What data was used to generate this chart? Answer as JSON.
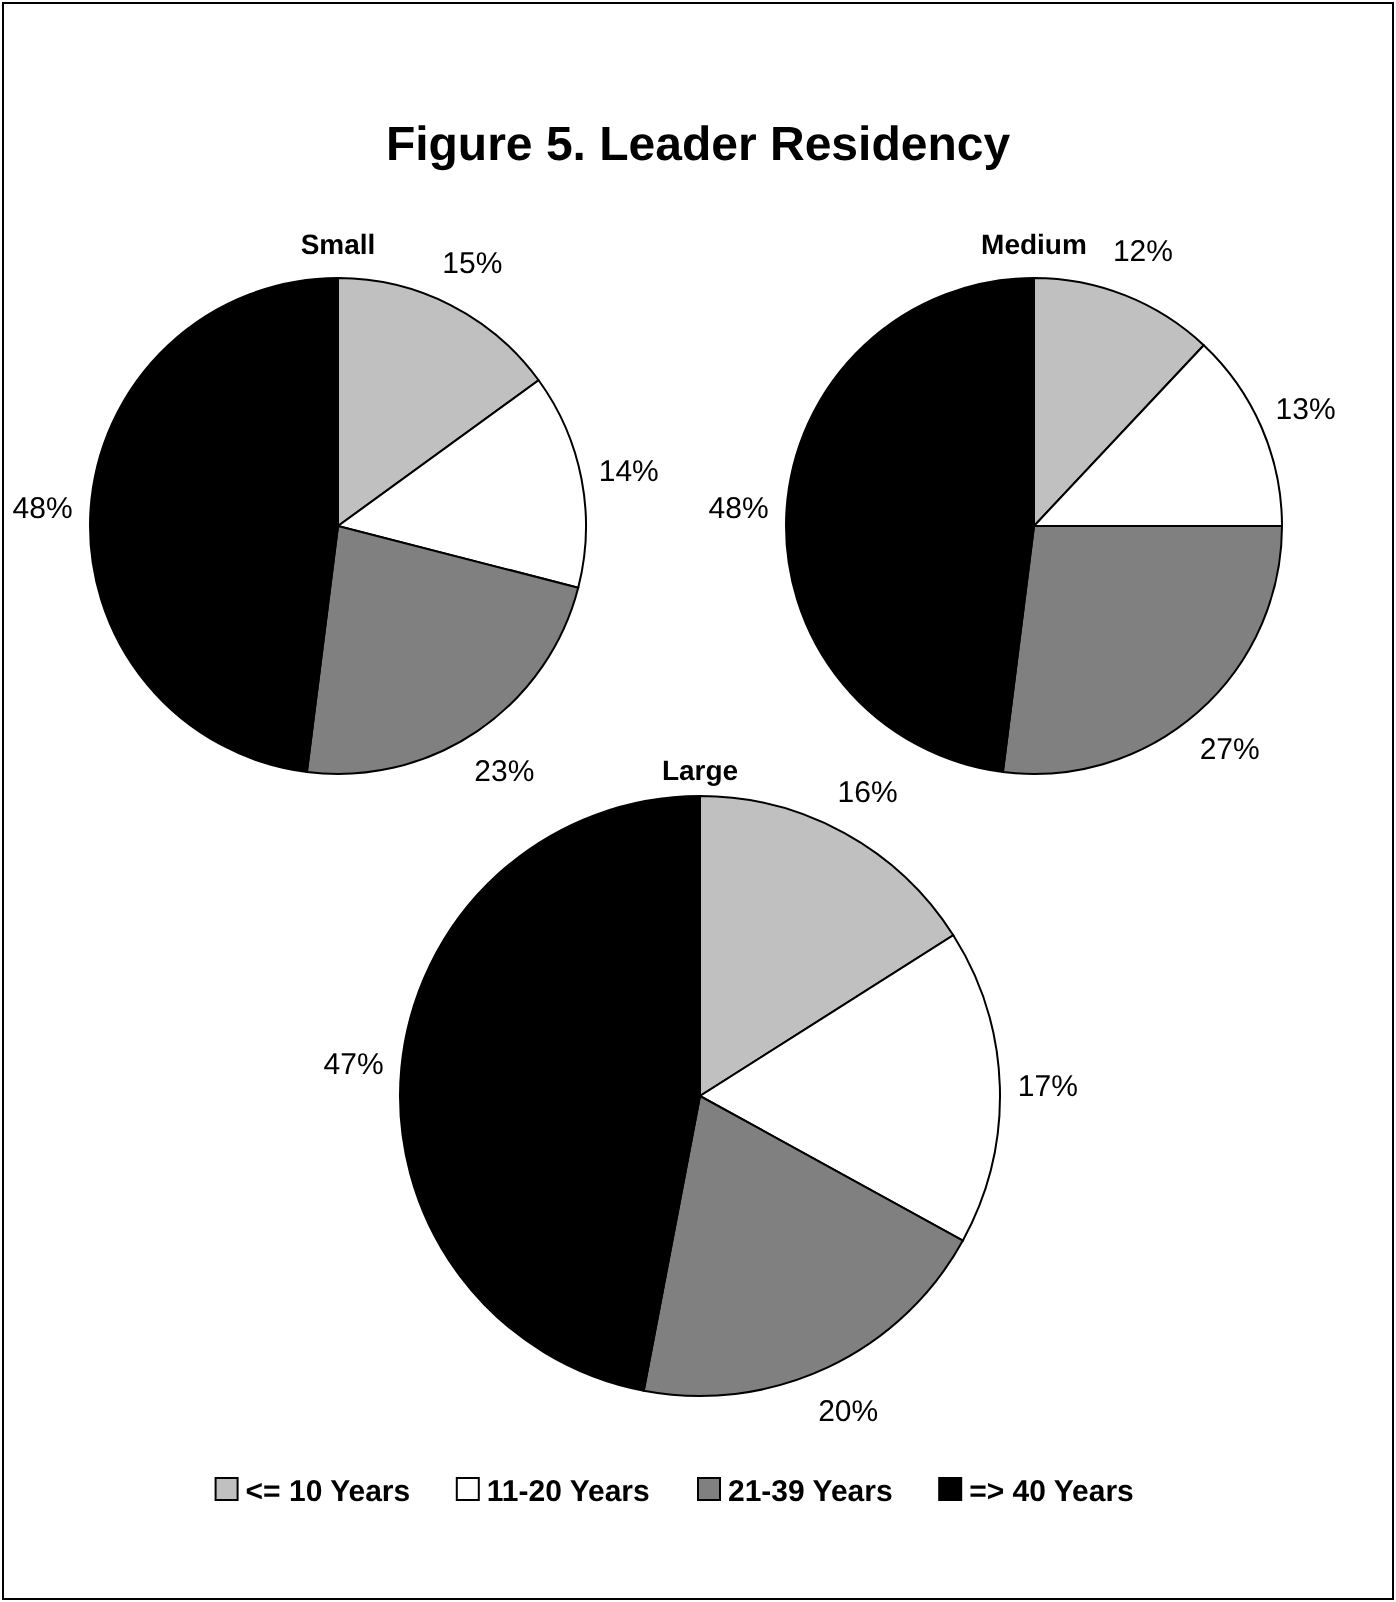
{
  "chart_data": [
    {
      "type": "other",
      "title": "Figure 5.  Leader Residency"
    },
    {
      "type": "pie",
      "title": "Small",
      "categories": [
        "<= 10 Years",
        "11-20 Years",
        "21-39 Years",
        "=> 40 Years"
      ],
      "values": [
        15,
        14,
        23,
        48
      ],
      "value_labels": [
        "15%",
        "14%",
        "23%",
        "48%"
      ],
      "colors": [
        "#c0c0c0",
        "#ffffff",
        "#808080",
        "#000000"
      ],
      "legend": "bottom"
    },
    {
      "type": "pie",
      "title": "Medium",
      "categories": [
        null,
        null,
        null,
        null
      ],
      "values": [
        12,
        13,
        27,
        48
      ],
      "value_labels": [
        "12%",
        "13%",
        "27%",
        "48%"
      ],
      "colors": [
        "#c0c0c0",
        "#ffffff",
        "#808080",
        "#000000"
      ]
    },
    {
      "type": "pie",
      "title": "Large",
      "categories": [
        null,
        null,
        null,
        null
      ],
      "values": [
        16,
        17,
        20,
        47
      ],
      "value_labels": [
        "16%",
        "17%",
        "20%",
        "47%"
      ],
      "colors": [
        "#c0c0c0",
        "#ffffff",
        "#808080",
        "#000000"
      ]
    }
  ]
}
